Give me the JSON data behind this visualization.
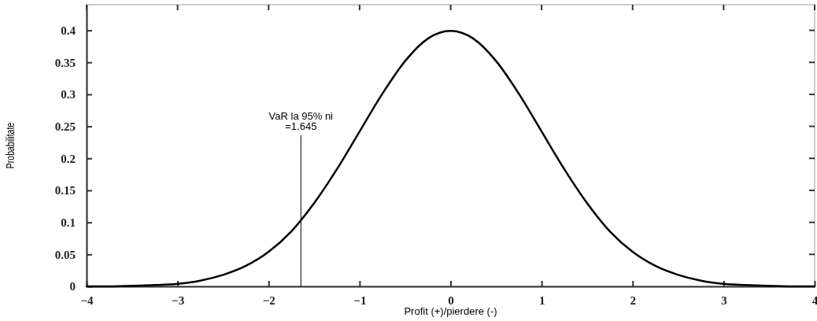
{
  "chart_data": {
    "type": "line",
    "xlabel": "Profit (+)/pierdere (-)",
    "ylabel": "Probabilitate",
    "x": [
      -4,
      -3.75,
      -3.5,
      -3.25,
      -3,
      -2.75,
      -2.5,
      -2.25,
      -2,
      -1.75,
      -1.5,
      -1.25,
      -1,
      -0.75,
      -0.5,
      -0.25,
      0,
      0.25,
      0.5,
      0.75,
      1,
      1.25,
      1.5,
      1.75,
      2,
      2.25,
      2.5,
      2.75,
      3,
      3.25,
      3.5,
      3.75,
      4
    ],
    "series": [
      {
        "color": "#000000",
        "values": [
          0,
          0,
          0.001,
          0.002,
          0.004,
          0.009,
          0.018,
          0.032,
          0.054,
          0.086,
          0.13,
          0.183,
          0.242,
          0.301,
          0.352,
          0.387,
          0.399,
          0.387,
          0.352,
          0.301,
          0.242,
          0.183,
          0.13,
          0.086,
          0.054,
          0.032,
          0.018,
          0.009,
          0.004,
          0.002,
          0.001,
          0,
          0
        ]
      }
    ],
    "xlim": [
      -4,
      4
    ],
    "ylim": [
      0,
      0.44
    ],
    "xticks": [
      -4,
      -3,
      -2,
      -1,
      0,
      1,
      2,
      3,
      4
    ],
    "yticks": [
      0,
      0.05,
      0.1,
      0.15,
      0.2,
      0.25,
      0.3,
      0.35,
      0.4
    ],
    "ref_lines": [
      {
        "axis": "x",
        "value": -1.645,
        "color": "#000000"
      }
    ],
    "annotations": [
      "VaR la 95% ni\n=1.645"
    ],
    "grid": false,
    "marker": "none",
    "line_style": "solid"
  }
}
